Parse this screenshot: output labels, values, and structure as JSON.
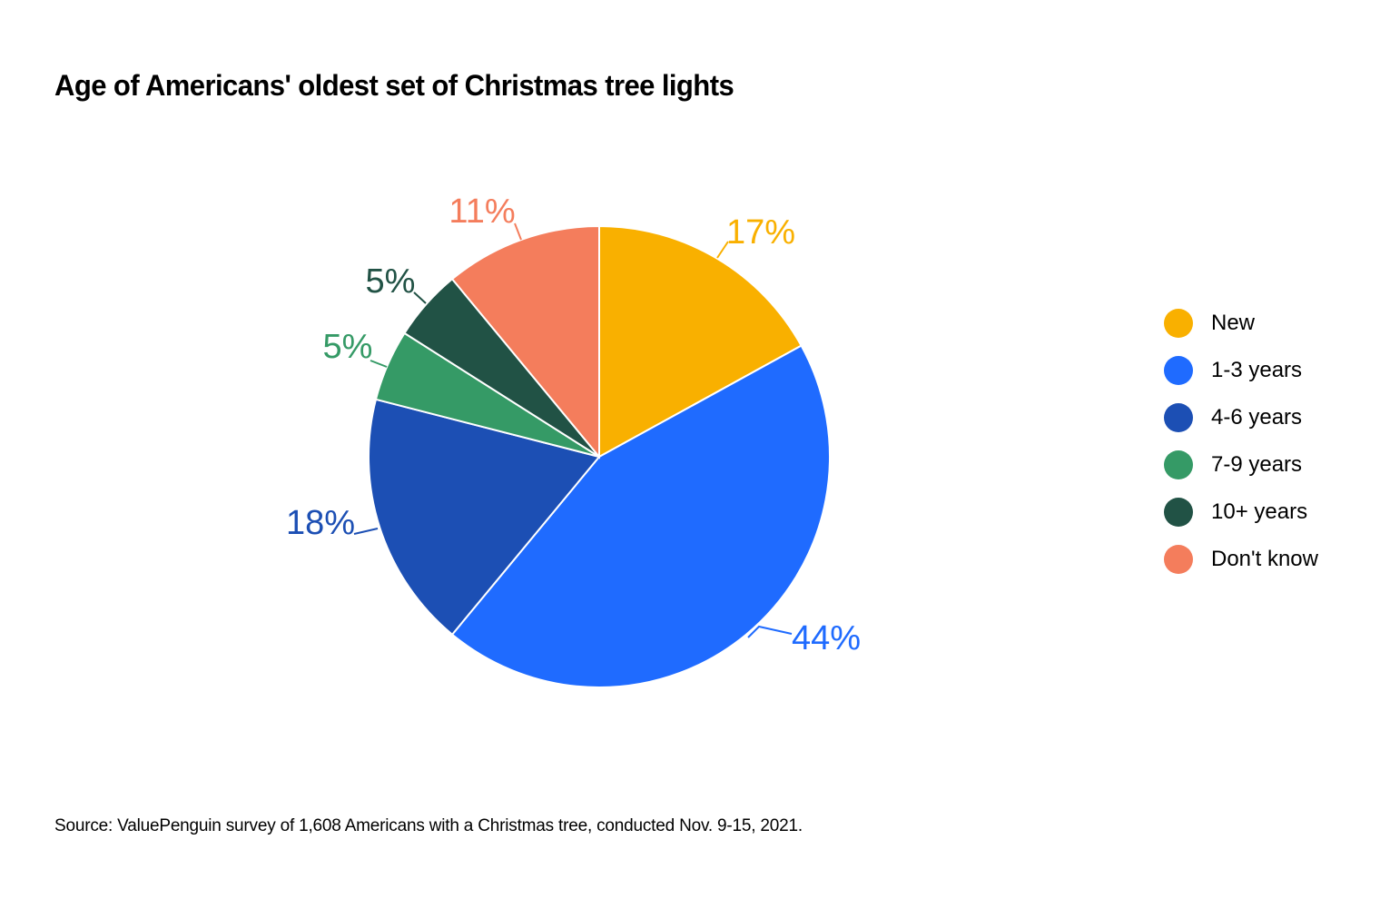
{
  "title": "Age of Americans' oldest set of Christmas tree lights",
  "source": "Source: ValuePenguin survey of 1,608 Americans with a Christmas tree, conducted Nov. 9-15, 2021.",
  "legend": [
    {
      "label": "New",
      "color": "#F9B000"
    },
    {
      "label": "1-3 years",
      "color": "#1F6BFF"
    },
    {
      "label": "4-6 years",
      "color": "#1C4FB4"
    },
    {
      "label": "7-9 years",
      "color": "#359A66"
    },
    {
      "label": "10+ years",
      "color": "#215245"
    },
    {
      "label": "Don't know",
      "color": "#F47D5C"
    }
  ],
  "chart_data": {
    "type": "pie",
    "title": "Age of Americans' oldest set of Christmas tree lights",
    "categories": [
      "New",
      "1-3 years",
      "4-6 years",
      "7-9 years",
      "10+ years",
      "Don't know"
    ],
    "values": [
      17,
      44,
      18,
      5,
      5,
      11
    ],
    "labels": [
      "17%",
      "44%",
      "18%",
      "5%",
      "5%",
      "11%"
    ],
    "colors": [
      "#F9B000",
      "#1F6BFF",
      "#1C4FB4",
      "#359A66",
      "#215245",
      "#F47D5C"
    ],
    "start_angle": "12 o'clock, clockwise",
    "legend_position": "right",
    "source": "ValuePenguin survey of 1,608 Americans with a Christmas tree, conducted Nov. 9-15, 2021."
  }
}
